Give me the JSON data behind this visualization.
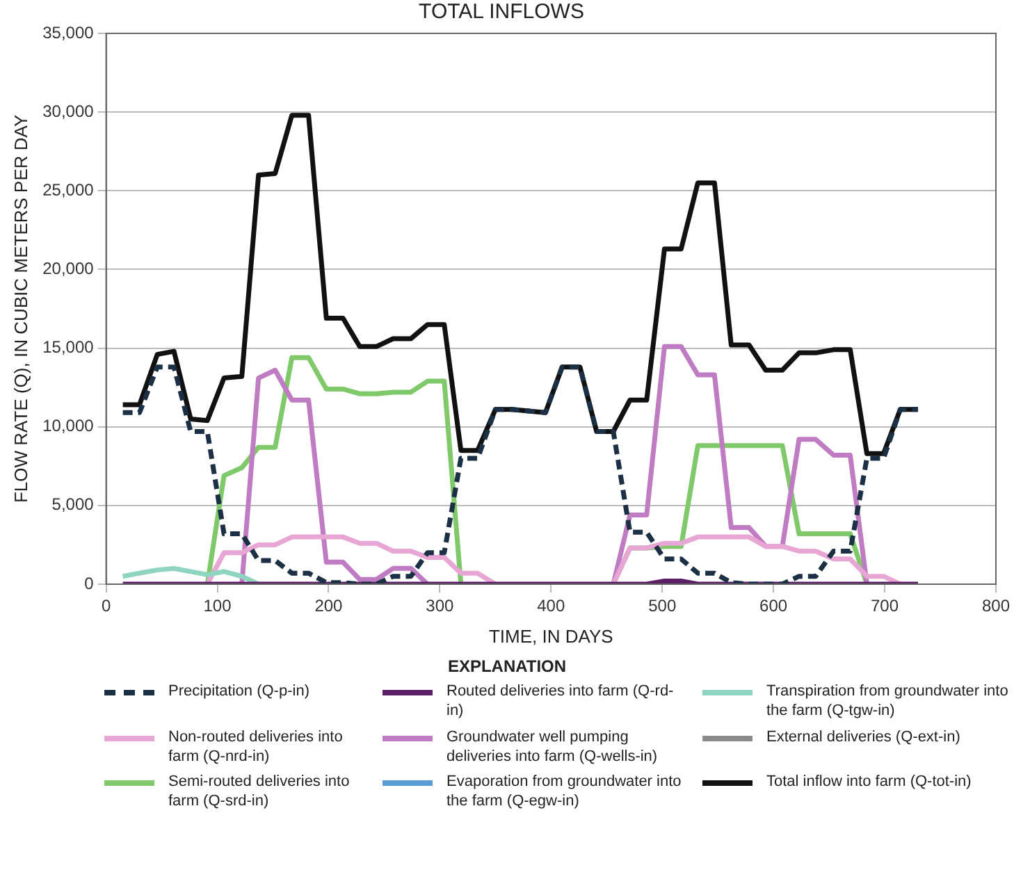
{
  "chart_data": {
    "type": "line",
    "title": "TOTAL INFLOWS",
    "xlabel": "TIME, IN DAYS",
    "ylabel": "FLOW RATE (Q), IN CUBIC METERS PER DAY",
    "legend_title": "EXPLANATION",
    "legend": "bottom",
    "grid": "y",
    "marker": "none",
    "x": [
      15,
      30,
      46,
      61,
      76,
      91,
      106,
      122,
      137,
      152,
      167,
      182,
      198,
      213,
      228,
      243,
      258,
      274,
      289,
      304,
      319,
      334,
      350,
      365,
      380,
      395,
      410,
      426,
      441,
      456,
      471,
      486,
      502,
      517,
      532,
      547,
      562,
      578,
      593,
      608,
      623,
      638,
      654,
      669,
      684,
      699,
      714,
      730
    ],
    "xlim": [
      0,
      800
    ],
    "xticks": [
      0,
      100,
      200,
      300,
      400,
      500,
      600,
      700,
      800
    ],
    "ylim": [
      0,
      35000
    ],
    "yticks": [
      0,
      {
        "value": 5000,
        "label": "5,000"
      },
      {
        "value": 10000,
        "label": "10,000"
      },
      {
        "value": 15000,
        "label": "15,000"
      },
      {
        "value": 20000,
        "label": "20,000"
      },
      {
        "value": 25000,
        "label": "25,000"
      },
      {
        "value": 30000,
        "label": "30,000"
      },
      {
        "value": 35000,
        "label": "35,000"
      }
    ],
    "series": [
      {
        "name": "Precipitation (Q-p-in)",
        "color": "#1b2f45",
        "line_style": "dashed",
        "values": [
          10900,
          10900,
          13800,
          13800,
          9700,
          9700,
          3200,
          3200,
          1500,
          1500,
          700,
          700,
          100,
          100,
          0,
          0,
          500,
          500,
          2000,
          2000,
          8000,
          8000,
          11100,
          11100,
          11000,
          10900,
          13800,
          13800,
          9700,
          9700,
          3300,
          3300,
          1600,
          1600,
          700,
          700,
          100,
          0,
          0,
          0,
          500,
          500,
          2100,
          2100,
          8000,
          8000,
          11100,
          11100
        ]
      },
      {
        "name": "Routed deliveries into farm (Q-rd-in)",
        "color": "#5b1f66",
        "values": [
          0,
          0,
          0,
          0,
          0,
          0,
          0,
          0,
          0,
          0,
          0,
          0,
          0,
          0,
          0,
          0,
          0,
          0,
          0,
          0,
          0,
          0,
          0,
          0,
          0,
          0,
          0,
          0,
          0,
          0,
          0,
          0,
          200,
          200,
          0,
          0,
          0,
          0,
          0,
          0,
          0,
          0,
          0,
          0,
          0,
          0,
          0,
          0
        ]
      },
      {
        "name": "Transpiration from groundwater into the farm (Q-tgw-in)",
        "color": "#8fd4c0",
        "values": [
          500,
          700,
          900,
          1000,
          800,
          600,
          800,
          500,
          0,
          null,
          null,
          null,
          null,
          null,
          null,
          null,
          null,
          null,
          null,
          null,
          null,
          null,
          null,
          null,
          null,
          null,
          null,
          null,
          null,
          null,
          null,
          null,
          null,
          null,
          null,
          null,
          null,
          null,
          null,
          null,
          null,
          null,
          null,
          null,
          null,
          null,
          null,
          null
        ]
      },
      {
        "name": "Non-routed deliveries into farm (Q-nrd-in)",
        "color": "#e8a6d4",
        "values": [
          null,
          null,
          null,
          null,
          null,
          0,
          2000,
          2000,
          2500,
          2500,
          3000,
          3000,
          3000,
          3000,
          2600,
          2600,
          2100,
          2100,
          1700,
          1700,
          700,
          700,
          0,
          null,
          null,
          null,
          null,
          null,
          null,
          0,
          2300,
          2300,
          2600,
          2600,
          3000,
          3000,
          3000,
          3000,
          2400,
          2400,
          2100,
          2100,
          1600,
          1600,
          500,
          500,
          0,
          null
        ]
      },
      {
        "name": "Groundwater well pumping deliveries into farm (Q-wells-in)",
        "color": "#c07cc2",
        "values": [
          null,
          null,
          null,
          null,
          null,
          null,
          null,
          0,
          13100,
          13600,
          11700,
          11700,
          1400,
          1400,
          300,
          300,
          1000,
          1000,
          0,
          null,
          null,
          null,
          null,
          null,
          null,
          null,
          null,
          null,
          null,
          0,
          4400,
          4400,
          15100,
          15100,
          13300,
          13300,
          3600,
          3600,
          2400,
          2400,
          9200,
          9200,
          8200,
          8200,
          0,
          null,
          null,
          null
        ]
      },
      {
        "name": "External deliveries (Q-ext-in)",
        "color": "#8a8a8a",
        "values": [
          null,
          null,
          null,
          null,
          null,
          null,
          null,
          null,
          null,
          null,
          null,
          null,
          null,
          null,
          null,
          null,
          null,
          null,
          null,
          null,
          null,
          null,
          null,
          null,
          null,
          null,
          null,
          null,
          null,
          null,
          null,
          null,
          null,
          null,
          null,
          null,
          null,
          null,
          null,
          null,
          null,
          null,
          null,
          null,
          null,
          null,
          null,
          null
        ]
      },
      {
        "name": "Semi-routed deliveries into farm (Q-srd-in)",
        "color": "#7fc96a",
        "values": [
          null,
          null,
          null,
          null,
          null,
          0,
          6900,
          7400,
          8700,
          8700,
          14400,
          14400,
          12400,
          12400,
          12100,
          12100,
          12200,
          12200,
          12900,
          12900,
          0,
          null,
          null,
          null,
          null,
          null,
          null,
          null,
          null,
          0,
          2300,
          2300,
          2400,
          2400,
          8800,
          8800,
          8800,
          8800,
          8800,
          8800,
          3200,
          3200,
          3200,
          3200,
          0,
          null,
          null,
          null
        ]
      },
      {
        "name": "Evaporation from groundwater into the farm (Q-egw-in)",
        "color": "#5b9bd5",
        "values": [
          null,
          null,
          null,
          null,
          null,
          null,
          null,
          null,
          null,
          null,
          null,
          null,
          null,
          null,
          null,
          null,
          null,
          null,
          null,
          null,
          null,
          null,
          null,
          null,
          null,
          null,
          null,
          null,
          null,
          null,
          null,
          null,
          null,
          null,
          null,
          null,
          null,
          null,
          null,
          null,
          null,
          null,
          null,
          null,
          null,
          null,
          null,
          null
        ]
      },
      {
        "name": "Total inflow into farm (Q-tot-in)",
        "color": "#111111",
        "values": [
          11400,
          11400,
          14600,
          14800,
          10500,
          10400,
          13100,
          13200,
          26000,
          26100,
          29800,
          29800,
          16900,
          16900,
          15100,
          15100,
          15600,
          15600,
          16500,
          16500,
          8500,
          8500,
          11100,
          11100,
          11000,
          10900,
          13800,
          13800,
          9700,
          9700,
          11700,
          11700,
          21300,
          21300,
          25500,
          25500,
          15200,
          15200,
          13600,
          13600,
          14700,
          14700,
          14900,
          14900,
          8300,
          8300,
          11100,
          11100
        ]
      }
    ]
  }
}
